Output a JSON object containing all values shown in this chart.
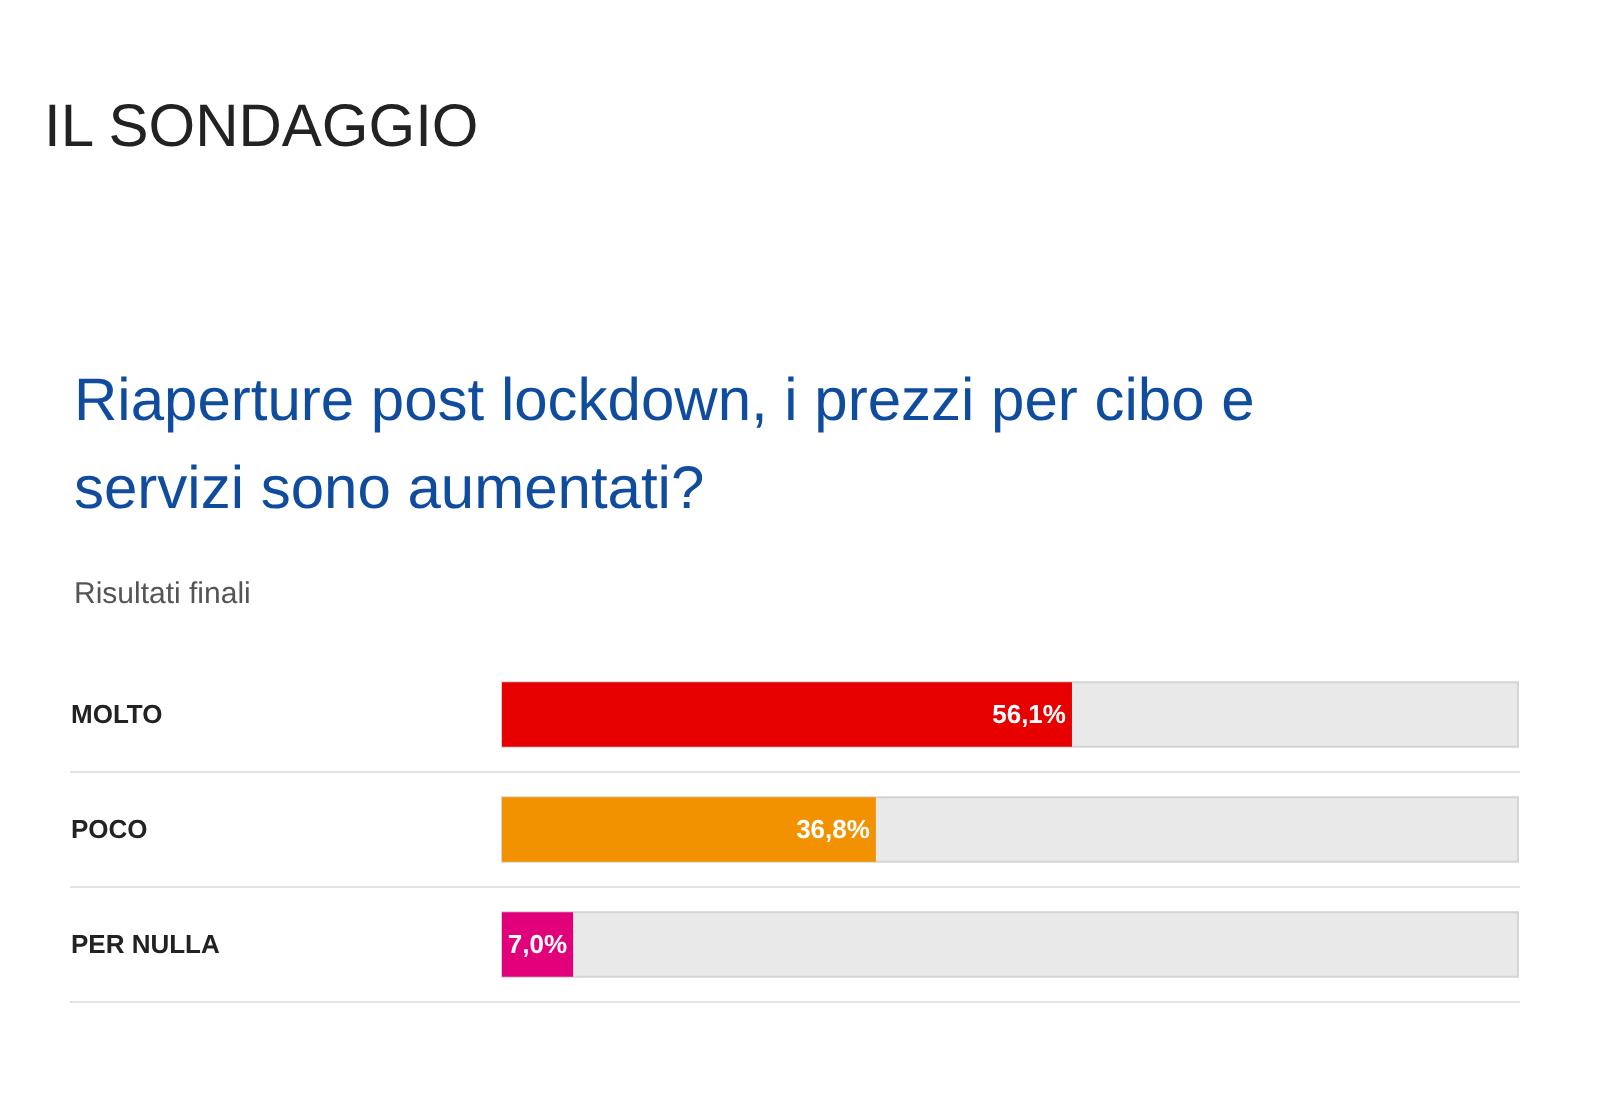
{
  "chart_data": {
    "type": "bar",
    "orientation": "horizontal",
    "title": "IL SONDAGGIO",
    "subtitle": "Riaperture post lockdown, i prezzi per cibo e servizi sono aumentati?",
    "annotations": [
      "Risultati finali"
    ],
    "categories": [
      "MOLTO",
      "POCO",
      "PER NULLA"
    ],
    "values": [
      56.1,
      36.8,
      7.0
    ],
    "colors": [
      "#e60000",
      "#f39200",
      "#e2007a"
    ],
    "value_labels": [
      "56,1%",
      "36,8%",
      "7,0%"
    ],
    "xlim": [
      0,
      100
    ],
    "tick_labels": "y",
    "grid": "y"
  }
}
